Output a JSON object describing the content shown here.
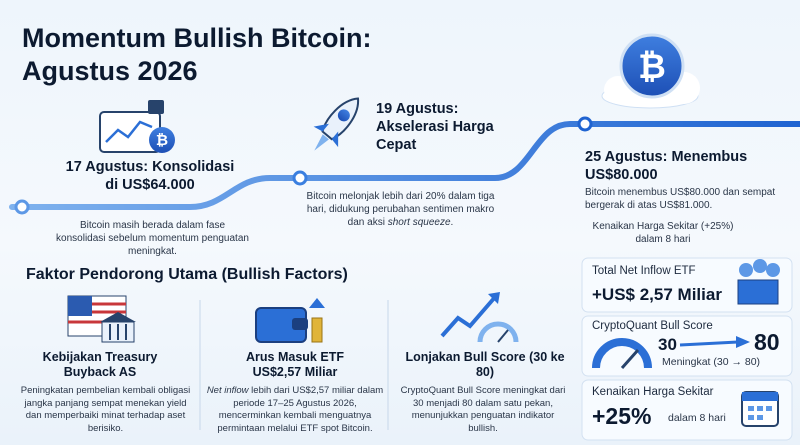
{
  "header": {
    "title": "Momentum Bullish Bitcoin: Agustus 2026"
  },
  "timeline": [
    {
      "title": "17 Agustus: Konsolidasi di US$64.000",
      "desc": "Bitcoin masih berada dalam fase konsolidasi sebelum momentum penguatan meningkat."
    },
    {
      "title": "19 Agustus: Akselerasi Harga Cepat",
      "desc": "Bitcoin melonjak lebih dari 20% dalam tiga hari, didukung perubahan sentimen makro dan aksi",
      "desc_emphasis": "short squeeze",
      "desc_end": "."
    },
    {
      "title": "25 Agustus: Menembus US$80.000",
      "desc": "Bitcoin menembus US$80.000 dan sempat bergerak di atas US$81.000.",
      "note": "Kenaikan Harga Sekitar (+25%) dalam 8 hari"
    }
  ],
  "factors": {
    "title": "Faktor Pendorong Utama (Bullish Factors)",
    "items": [
      {
        "title": "Kebijakan Treasury Buyback AS",
        "desc": "Peningkatan pembelian kembali obligasi jangka panjang sempat menekan yield dan memperbaiki minat terhadap aset berisiko."
      },
      {
        "title": "Arus Masuk ETF US$2,57 Miliar",
        "desc_emphasis": "Net inflow",
        "desc": "lebih dari US$2,57 miliar dalam periode 17–25 Agustus 2026, mencerminkan kembali menguatnya permintaan melalui ETF spot Bitcoin."
      },
      {
        "title": "Lonjakan Bull Score (30 ke 80)",
        "desc": "CryptoQuant Bull Score meningkat dari 30 menjadi 80 dalam satu pekan, menunjukkan penguatan indikator bullish."
      }
    ]
  },
  "stats": [
    {
      "label": "Total Net Inflow ETF",
      "value": "+US$ 2,57 Miliar"
    },
    {
      "label": "CryptoQuant Bull Score",
      "from": "30",
      "to": "80",
      "note": "Meningkat (30 → 80)"
    },
    {
      "label": "Kenaikan Harga Sekitar",
      "value": "+25%",
      "note": "dalam 8 hari"
    }
  ]
}
